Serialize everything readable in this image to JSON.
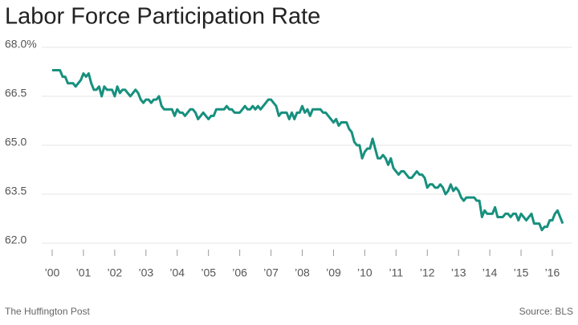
{
  "chart_data": {
    "type": "line",
    "title": "Labor Force Participation Rate",
    "source": "Source: BLS",
    "publisher": "The Huffington Post",
    "color": "#17907e",
    "categories": [
      "’00",
      null,
      null,
      null,
      null,
      null,
      null,
      null,
      null,
      null,
      null,
      null,
      "’01",
      null,
      null,
      null,
      null,
      null,
      null,
      null,
      null,
      null,
      null,
      null,
      "’02",
      null,
      null,
      null,
      null,
      null,
      null,
      null,
      null,
      null,
      null,
      null,
      "’03",
      null,
      null,
      null,
      null,
      null,
      null,
      null,
      null,
      null,
      null,
      null,
      "’04",
      null,
      null,
      null,
      null,
      null,
      null,
      null,
      null,
      null,
      null,
      null,
      "’05",
      null,
      null,
      null,
      null,
      null,
      null,
      null,
      null,
      null,
      null,
      null,
      "’06",
      null,
      null,
      null,
      null,
      null,
      null,
      null,
      null,
      null,
      null,
      null,
      "’07",
      null,
      null,
      null,
      null,
      null,
      null,
      null,
      null,
      null,
      null,
      null,
      "’08",
      null,
      null,
      null,
      null,
      null,
      null,
      null,
      null,
      null,
      null,
      null,
      "’09",
      null,
      null,
      null,
      null,
      null,
      null,
      null,
      null,
      null,
      null,
      null,
      "’10",
      null,
      null,
      null,
      null,
      null,
      null,
      null,
      null,
      null,
      null,
      null,
      "’11",
      null,
      null,
      null,
      null,
      null,
      null,
      null,
      null,
      null,
      null,
      null,
      "’12",
      null,
      null,
      null,
      null,
      null,
      null,
      null,
      null,
      null,
      null,
      null,
      "’13",
      null,
      null,
      null,
      null,
      null,
      null,
      null,
      null,
      null,
      null,
      null,
      "’14",
      null,
      null,
      null,
      null,
      null,
      null,
      null,
      null,
      null,
      null,
      null,
      "’15",
      null,
      null,
      null,
      null,
      null,
      null,
      null,
      null,
      null,
      null,
      null,
      "’16",
      null,
      null,
      null,
      null
    ],
    "values": [
      67.3,
      67.3,
      67.3,
      67.3,
      67.1,
      67.1,
      66.9,
      66.9,
      66.9,
      66.8,
      66.9,
      67.0,
      67.2,
      67.1,
      67.2,
      66.9,
      66.7,
      66.7,
      66.8,
      66.5,
      66.8,
      66.7,
      66.7,
      66.7,
      66.5,
      66.8,
      66.6,
      66.7,
      66.7,
      66.6,
      66.5,
      66.6,
      66.7,
      66.6,
      66.4,
      66.3,
      66.4,
      66.4,
      66.3,
      66.4,
      66.4,
      66.5,
      66.2,
      66.1,
      66.1,
      66.1,
      66.1,
      65.9,
      66.1,
      66.0,
      66.0,
      65.9,
      66.0,
      66.1,
      66.1,
      66.0,
      65.8,
      65.9,
      66.0,
      65.9,
      65.8,
      65.9,
      65.9,
      66.1,
      66.1,
      66.1,
      66.1,
      66.2,
      66.1,
      66.1,
      66.0,
      66.0,
      66.0,
      66.1,
      66.2,
      66.1,
      66.1,
      66.2,
      66.1,
      66.2,
      66.1,
      66.2,
      66.3,
      66.4,
      66.4,
      66.3,
      66.2,
      65.9,
      66.0,
      66.0,
      66.0,
      65.8,
      66.0,
      65.8,
      66.0,
      66.0,
      66.2,
      66.0,
      66.1,
      65.9,
      66.1,
      66.1,
      66.1,
      66.1,
      66.0,
      66.0,
      65.9,
      65.8,
      65.7,
      65.8,
      65.6,
      65.7,
      65.7,
      65.7,
      65.5,
      65.4,
      65.1,
      65.0,
      65.0,
      64.6,
      64.8,
      64.9,
      64.9,
      65.2,
      64.9,
      64.6,
      64.6,
      64.7,
      64.6,
      64.4,
      64.6,
      64.3,
      64.2,
      64.1,
      64.2,
      64.2,
      64.1,
      64.0,
      64.0,
      64.1,
      64.2,
      64.1,
      64.1,
      64.0,
      63.7,
      63.8,
      63.8,
      63.7,
      63.7,
      63.8,
      63.7,
      63.5,
      63.6,
      63.8,
      63.6,
      63.7,
      63.6,
      63.4,
      63.3,
      63.4,
      63.4,
      63.4,
      63.4,
      63.3,
      63.3,
      62.8,
      63.0,
      62.9,
      62.9,
      62.9,
      63.1,
      62.8,
      62.8,
      62.8,
      62.9,
      62.9,
      62.8,
      62.9,
      62.9,
      62.7,
      62.9,
      62.8,
      62.7,
      62.8,
      62.9,
      62.6,
      62.6,
      62.6,
      62.4,
      62.5,
      62.5,
      62.7,
      62.7,
      62.9,
      63.0,
      62.8,
      62.6
    ],
    "ylim": [
      62,
      68
    ],
    "yticks": [
      {
        "value": 62,
        "label": "62.0"
      },
      {
        "value": 63.5,
        "label": "63.5"
      },
      {
        "value": 65,
        "label": "65.0"
      },
      {
        "value": 66.5,
        "label": "66.5"
      },
      {
        "value": 68,
        "label": "68.0%"
      }
    ],
    "grid": true
  }
}
